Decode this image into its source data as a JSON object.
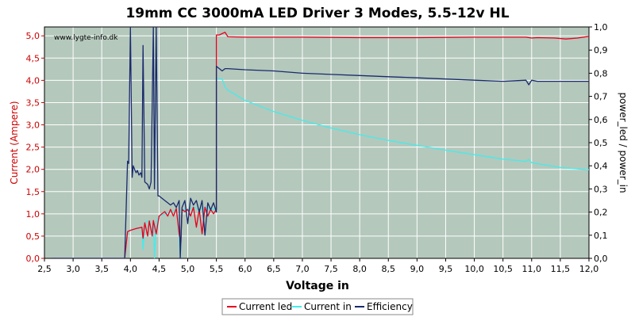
{
  "chart_data": {
    "type": "line",
    "title": "19mm CC 3000mA LED Driver 3 Modes, 5.5-12v HL",
    "watermark": "www.lygte-info.dk",
    "xlabel": "Voltage in",
    "ylabel_left": "Current (Ampere)",
    "ylabel_right": "power_led / power_in",
    "xlim": [
      2.5,
      12.0
    ],
    "ylim_left": [
      0,
      5.2
    ],
    "ylim_right": [
      0,
      1.0
    ],
    "x_ticks": [
      "2,5",
      "3,0",
      "3,5",
      "4,0",
      "4,5",
      "5,0",
      "5,5",
      "6,0",
      "6,5",
      "7,0",
      "7,5",
      "8,0",
      "8,5",
      "9,0",
      "9,5",
      "10,0",
      "10,5",
      "11,0",
      "11,5",
      "12,0"
    ],
    "y_ticks_left": [
      "0,0",
      "0,5",
      "1,0",
      "1,5",
      "2,0",
      "2,5",
      "3,0",
      "3,5",
      "4,0",
      "4,5",
      "5,0"
    ],
    "y_ticks_right": [
      "0,0",
      "0,1",
      "0,2",
      "0,3",
      "0,4",
      "0,5",
      "0,6",
      "0,7",
      "0,8",
      "0,9",
      "1,0"
    ],
    "grid": true,
    "legend_position": "bottom-center",
    "colors": {
      "plot_background": "#b4c8bc",
      "grid": "#ffffff",
      "left_axis": "#cc0000",
      "right_axis": "#000000"
    },
    "series": [
      {
        "name": "Current led",
        "axis": "left",
        "color": "#e8001c",
        "x": [
          2.6,
          3.9,
          3.95,
          4.0,
          4.1,
          4.2,
          4.22,
          4.25,
          4.3,
          4.33,
          4.38,
          4.4,
          4.45,
          4.5,
          4.55,
          4.6,
          4.65,
          4.7,
          4.75,
          4.8,
          4.85,
          4.88,
          4.9,
          4.95,
          5.0,
          5.05,
          5.1,
          5.15,
          5.2,
          5.25,
          5.3,
          5.35,
          5.4,
          5.45,
          5.5,
          5.5,
          5.55,
          5.6,
          5.65,
          5.7,
          6.0,
          7.0,
          8.0,
          9.0,
          10.0,
          10.9,
          11.0,
          11.1,
          11.4,
          11.6,
          11.8,
          12.0
        ],
        "y": [
          0.0,
          0.0,
          0.6,
          0.63,
          0.67,
          0.7,
          0.45,
          0.8,
          0.5,
          0.84,
          0.5,
          0.85,
          0.55,
          0.95,
          1.0,
          1.05,
          0.95,
          1.1,
          0.95,
          1.12,
          0.55,
          0.35,
          1.1,
          1.05,
          1.1,
          0.95,
          1.15,
          0.7,
          1.1,
          0.55,
          1.15,
          0.95,
          1.1,
          1.0,
          1.1,
          5.02,
          5.02,
          5.05,
          5.08,
          4.98,
          4.97,
          4.97,
          4.96,
          4.96,
          4.97,
          4.97,
          4.95,
          4.96,
          4.95,
          4.93,
          4.95,
          4.99
        ]
      },
      {
        "name": "Current in",
        "axis": "left",
        "color": "#44ecec",
        "x": [
          2.6,
          3.9,
          3.95,
          4.0,
          4.1,
          4.2,
          4.22,
          4.25,
          4.3,
          4.38,
          4.4,
          4.42,
          4.45,
          4.5,
          4.6,
          4.7,
          4.8,
          4.85,
          4.87,
          4.9,
          5.0,
          5.1,
          5.2,
          5.3,
          5.4,
          5.5,
          5.5,
          5.55,
          5.6,
          5.65,
          5.7,
          6.0,
          6.5,
          7.0,
          7.5,
          8.0,
          8.5,
          9.0,
          9.5,
          10.0,
          10.5,
          10.9,
          10.95,
          11.0,
          11.5,
          12.0
        ],
        "y": [
          0.0,
          0.0,
          0.6,
          0.63,
          0.67,
          0.7,
          0.2,
          0.8,
          0.84,
          0.6,
          0.85,
          0.0,
          0.8,
          0.95,
          1.0,
          1.05,
          1.1,
          0.6,
          0.0,
          1.1,
          1.1,
          1.15,
          1.1,
          1.15,
          1.1,
          1.1,
          4.05,
          4.04,
          4.03,
          3.85,
          3.78,
          3.55,
          3.3,
          3.1,
          2.93,
          2.78,
          2.65,
          2.54,
          2.43,
          2.33,
          2.23,
          2.18,
          2.22,
          2.15,
          2.04,
          1.99
        ]
      },
      {
        "name": "Efficiency",
        "axis": "right",
        "color": "#1a2a6c",
        "x": [
          2.6,
          3.9,
          3.95,
          3.97,
          4.0,
          4.03,
          4.05,
          4.08,
          4.1,
          4.12,
          4.15,
          4.18,
          4.2,
          4.22,
          4.25,
          4.3,
          4.33,
          4.36,
          4.4,
          4.42,
          4.45,
          4.48,
          4.5,
          4.55,
          4.6,
          4.65,
          4.7,
          4.75,
          4.8,
          4.85,
          4.87,
          4.9,
          4.95,
          5.0,
          5.05,
          5.1,
          5.15,
          5.2,
          5.25,
          5.3,
          5.35,
          5.4,
          5.45,
          5.5,
          5.5,
          5.6,
          5.65,
          5.7,
          6.0,
          6.5,
          7.0,
          7.5,
          8.0,
          8.5,
          9.0,
          9.5,
          10.0,
          10.5,
          10.9,
          10.95,
          11.0,
          11.1,
          11.5,
          12.0
        ],
        "y": [
          0.0,
          0.0,
          0.42,
          0.41,
          1.0,
          0.35,
          0.4,
          0.38,
          0.37,
          0.38,
          0.36,
          0.37,
          0.35,
          0.92,
          0.33,
          0.32,
          0.3,
          0.33,
          1.0,
          0.3,
          1.0,
          0.27,
          0.27,
          0.26,
          0.25,
          0.24,
          0.23,
          0.24,
          0.22,
          0.25,
          0.0,
          0.22,
          0.25,
          0.15,
          0.26,
          0.23,
          0.25,
          0.2,
          0.25,
          0.1,
          0.24,
          0.21,
          0.24,
          0.2,
          0.83,
          0.81,
          0.82,
          0.82,
          0.815,
          0.81,
          0.8,
          0.795,
          0.79,
          0.785,
          0.78,
          0.775,
          0.77,
          0.765,
          0.77,
          0.75,
          0.77,
          0.765,
          0.765,
          0.765
        ]
      }
    ]
  }
}
